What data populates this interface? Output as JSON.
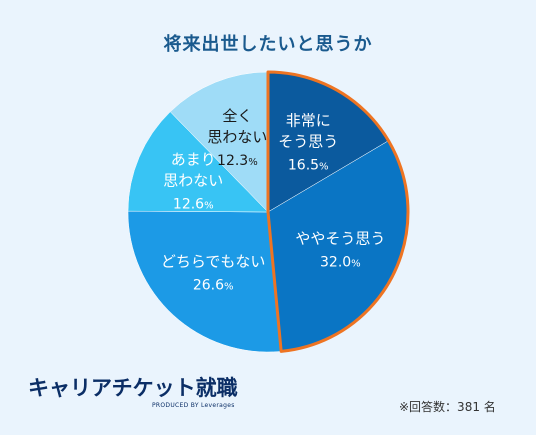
{
  "title": "将来出世したいと思うか",
  "note": "※回答数：381 名",
  "brand": {
    "name": "キャリアチケット就職",
    "produced_by": "PRODUCED BY Leverages"
  },
  "colors": {
    "highlight_border": "#ee7422",
    "label_text": "#ffffff",
    "dark_label_text": "#1a1a1a"
  },
  "chart_data": {
    "type": "pie",
    "title": "将来出世したいと思うか",
    "unit": "%",
    "slices": [
      {
        "label": [
          "非常に",
          "そう思う"
        ],
        "value": 16.5,
        "value_text": "16.5",
        "color": "#0b5a9e",
        "text_color": "#ffffff",
        "highlight": true
      },
      {
        "label": [
          "ややそう思う"
        ],
        "value": 32.0,
        "value_text": "32.0",
        "color": "#0a75c4",
        "text_color": "#ffffff",
        "highlight": true
      },
      {
        "label": [
          "どちらでもない"
        ],
        "value": 26.6,
        "value_text": "26.6",
        "color": "#1c9ae6",
        "text_color": "#ffffff",
        "highlight": false
      },
      {
        "label": [
          "あまり",
          "思わない"
        ],
        "value": 12.6,
        "value_text": "12.6",
        "color": "#38c4f4",
        "text_color": "#ffffff",
        "highlight": false
      },
      {
        "label": [
          "全く",
          "思わない"
        ],
        "value": 12.3,
        "value_text": "12.3",
        "color": "#9fdcf7",
        "text_color": "#1a1a1a",
        "highlight": false
      }
    ]
  }
}
